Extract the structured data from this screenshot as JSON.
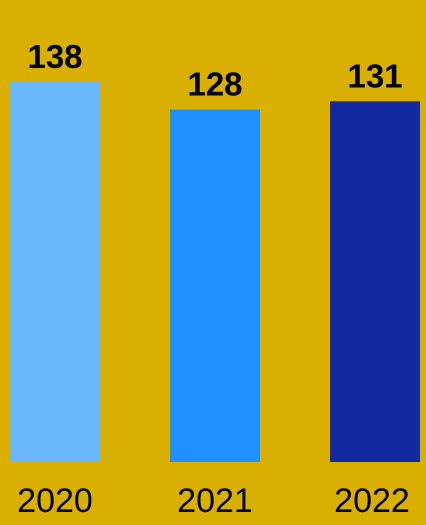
{
  "chart_data": {
    "type": "bar",
    "categories": [
      "2020",
      "2021",
      "2022"
    ],
    "values": [
      138,
      128,
      131
    ],
    "colors": [
      "#6CB8FF",
      "#1E90FF",
      "#1428A0"
    ],
    "background": "#DAB000",
    "show_value_labels": true,
    "grid": false,
    "legend": "none"
  }
}
